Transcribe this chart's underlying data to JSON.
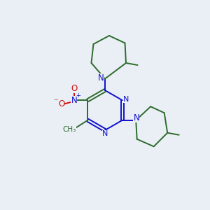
{
  "background_color": "#eaeff5",
  "bond_color": "#2d6b2d",
  "nitrogen_color": "#1010cc",
  "oxygen_color": "#cc1010",
  "figsize": [
    3.0,
    3.0
  ],
  "dpi": 100,
  "xlim": [
    0,
    10
  ],
  "ylim": [
    0,
    10
  ]
}
